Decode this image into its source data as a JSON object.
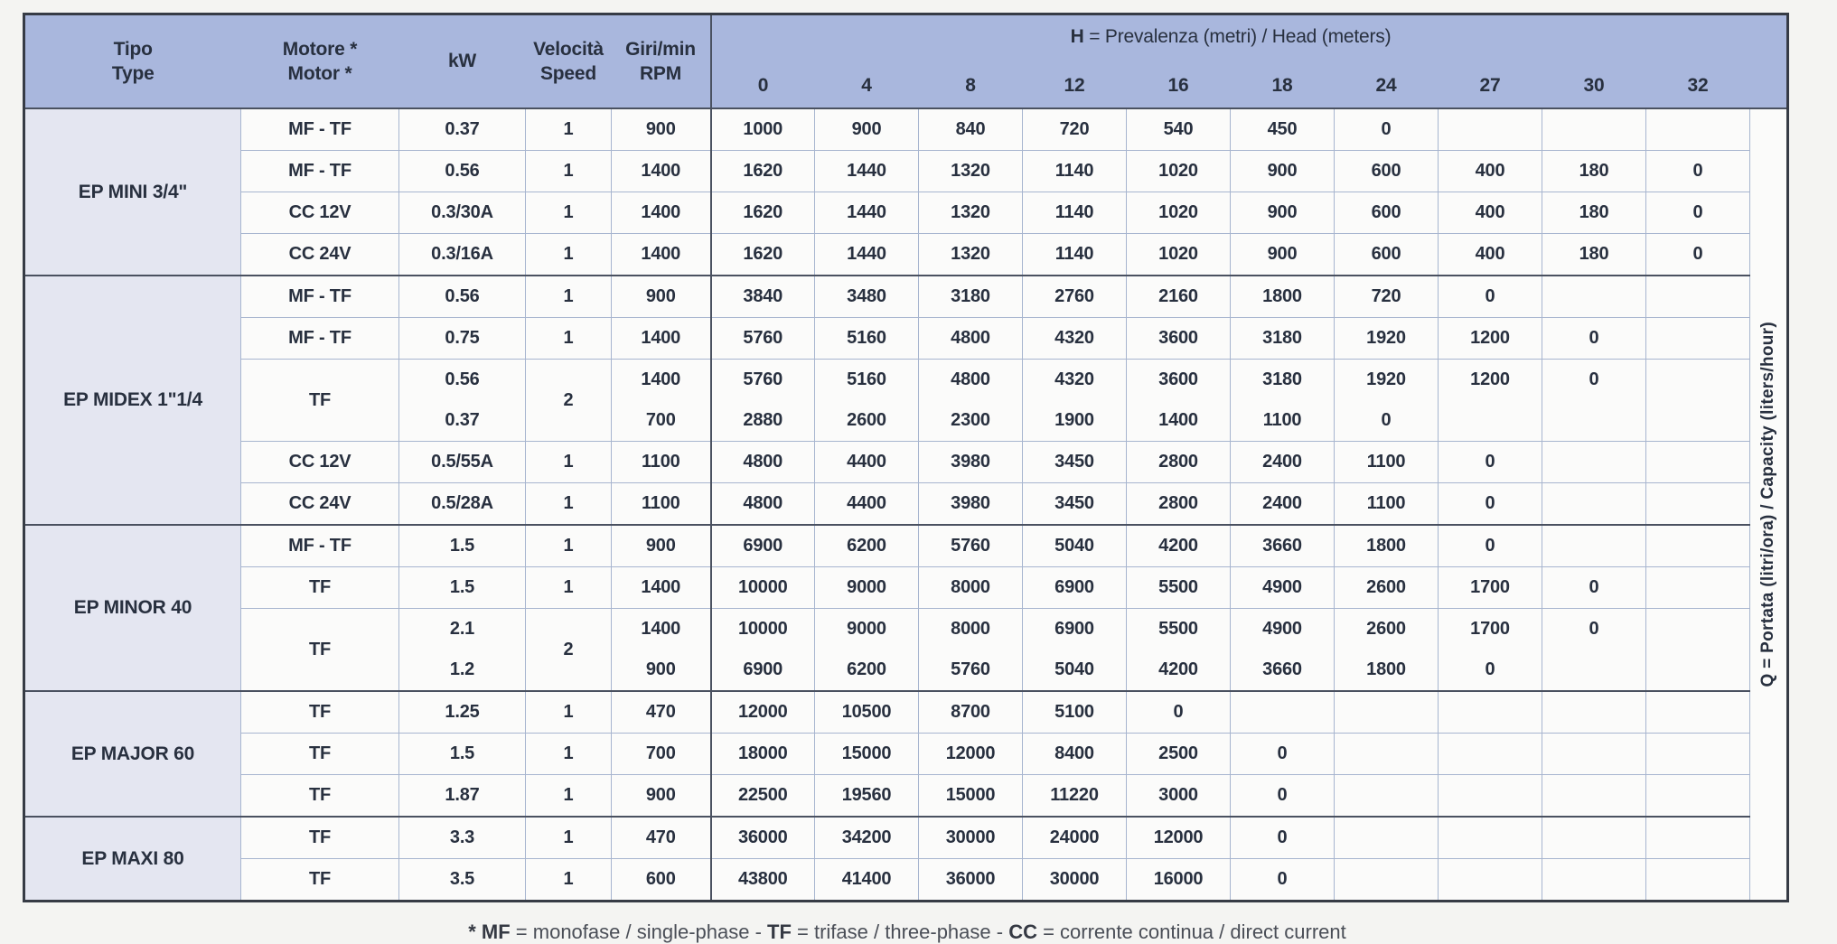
{
  "header": {
    "col_tipo_line1": "Tipo",
    "col_tipo_line2": "Type",
    "col_motor_line1": "Motore *",
    "col_motor_line2": "Motor *",
    "col_kw": "kW",
    "col_speed_line1": "Velocità",
    "col_speed_line2": "Speed",
    "col_rpm_line1": "Giri/min",
    "col_rpm_line2": "RPM",
    "h_bold": "H",
    "h_rest": " = Prevalenza (metri) / Head (meters)",
    "head_values": [
      "0",
      "4",
      "8",
      "12",
      "16",
      "18",
      "24",
      "27",
      "30",
      "32"
    ]
  },
  "side_label": {
    "bold": "Q",
    "rest": " = Portata (litri/ora) / Capacity (liters/hour)"
  },
  "footnote": {
    "b0": "* MF",
    "p0": " = monofase / single-phase - ",
    "b1": "TF",
    "p1": " = trifase / three-phase - ",
    "b2": "CC",
    "p2": " = corrente continua / direct current"
  },
  "colors": {
    "page_bg": "#f4f4f2",
    "header_bg": "#a9b7dd",
    "tipo_bg": "#e4e6f1",
    "cell_bg": "#fbfbfa",
    "grid": "#a7b5cf",
    "dark": "#4a5160",
    "outer": "#363b45",
    "text": "#28303f"
  },
  "table": {
    "groups": [
      {
        "name": "EP MINI 3/4\"",
        "rows": [
          {
            "motor": "MF - TF",
            "kw": "0.37",
            "speed": "1",
            "rpm": "900",
            "values": [
              "1000",
              "900",
              "840",
              "720",
              "540",
              "450",
              "0",
              "",
              "",
              ""
            ]
          },
          {
            "motor": "MF - TF",
            "kw": "0.56",
            "speed": "1",
            "rpm": "1400",
            "values": [
              "1620",
              "1440",
              "1320",
              "1140",
              "1020",
              "900",
              "600",
              "400",
              "180",
              "0"
            ]
          },
          {
            "motor": "CC 12V",
            "kw": "0.3/30A",
            "speed": "1",
            "rpm": "1400",
            "values": [
              "1620",
              "1440",
              "1320",
              "1140",
              "1020",
              "900",
              "600",
              "400",
              "180",
              "0"
            ]
          },
          {
            "motor": "CC 24V",
            "kw": "0.3/16A",
            "speed": "1",
            "rpm": "1400",
            "values": [
              "1620",
              "1440",
              "1320",
              "1140",
              "1020",
              "900",
              "600",
              "400",
              "180",
              "0"
            ]
          }
        ]
      },
      {
        "name": "EP MIDEX 1\"1/4",
        "rows": [
          {
            "motor": "MF - TF",
            "kw": "0.56",
            "speed": "1",
            "rpm": "900",
            "values": [
              "3840",
              "3480",
              "3180",
              "2760",
              "2160",
              "1800",
              "720",
              "0",
              "",
              ""
            ]
          },
          {
            "motor": "MF - TF",
            "kw": "0.75",
            "speed": "1",
            "rpm": "1400",
            "values": [
              "5760",
              "5160",
              "4800",
              "4320",
              "3600",
              "3180",
              "1920",
              "1200",
              "0",
              ""
            ]
          },
          {
            "motor": "TF",
            "kw": "0.56",
            "speed": "2",
            "rpm": "1400",
            "merge_with_next": true,
            "values": [
              "5760",
              "5160",
              "4800",
              "4320",
              "3600",
              "3180",
              "1920",
              "1200",
              "0",
              ""
            ]
          },
          {
            "merged": true,
            "kw": "0.37",
            "rpm": "700",
            "values": [
              "2880",
              "2600",
              "2300",
              "1900",
              "1400",
              "1100",
              "0",
              "",
              "",
              ""
            ]
          },
          {
            "motor": "CC 12V",
            "kw": "0.5/55A",
            "speed": "1",
            "rpm": "1100",
            "values": [
              "4800",
              "4400",
              "3980",
              "3450",
              "2800",
              "2400",
              "1100",
              "0",
              "",
              ""
            ]
          },
          {
            "motor": "CC 24V",
            "kw": "0.5/28A",
            "speed": "1",
            "rpm": "1100",
            "values": [
              "4800",
              "4400",
              "3980",
              "3450",
              "2800",
              "2400",
              "1100",
              "0",
              "",
              ""
            ]
          }
        ]
      },
      {
        "name": "EP MINOR 40",
        "rows": [
          {
            "motor": "MF - TF",
            "kw": "1.5",
            "speed": "1",
            "rpm": "900",
            "values": [
              "6900",
              "6200",
              "5760",
              "5040",
              "4200",
              "3660",
              "1800",
              "0",
              "",
              ""
            ]
          },
          {
            "motor": "TF",
            "kw": "1.5",
            "speed": "1",
            "rpm": "1400",
            "values": [
              "10000",
              "9000",
              "8000",
              "6900",
              "5500",
              "4900",
              "2600",
              "1700",
              "0",
              ""
            ]
          },
          {
            "motor": "TF",
            "kw": "2.1",
            "speed": "2",
            "rpm": "1400",
            "merge_with_next": true,
            "values": [
              "10000",
              "9000",
              "8000",
              "6900",
              "5500",
              "4900",
              "2600",
              "1700",
              "0",
              ""
            ]
          },
          {
            "merged": true,
            "kw": "1.2",
            "rpm": "900",
            "values": [
              "6900",
              "6200",
              "5760",
              "5040",
              "4200",
              "3660",
              "1800",
              "0",
              "",
              ""
            ]
          }
        ]
      },
      {
        "name": "EP MAJOR 60",
        "rows": [
          {
            "motor": "TF",
            "kw": "1.25",
            "speed": "1",
            "rpm": "470",
            "values": [
              "12000",
              "10500",
              "8700",
              "5100",
              "0",
              "",
              "",
              "",
              "",
              ""
            ]
          },
          {
            "motor": "TF",
            "kw": "1.5",
            "speed": "1",
            "rpm": "700",
            "values": [
              "18000",
              "15000",
              "12000",
              "8400",
              "2500",
              "0",
              "",
              "",
              "",
              ""
            ]
          },
          {
            "motor": "TF",
            "kw": "1.87",
            "speed": "1",
            "rpm": "900",
            "values": [
              "22500",
              "19560",
              "15000",
              "11220",
              "3000",
              "0",
              "",
              "",
              "",
              ""
            ]
          }
        ]
      },
      {
        "name": "EP MAXI 80",
        "rows": [
          {
            "motor": "TF",
            "kw": "3.3",
            "speed": "1",
            "rpm": "470",
            "values": [
              "36000",
              "34200",
              "30000",
              "24000",
              "12000",
              "0",
              "",
              "",
              "",
              ""
            ]
          },
          {
            "motor": "TF",
            "kw": "3.5",
            "speed": "1",
            "rpm": "600",
            "values": [
              "43800",
              "41400",
              "36000",
              "30000",
              "16000",
              "0",
              "",
              "",
              "",
              ""
            ]
          }
        ]
      }
    ]
  }
}
